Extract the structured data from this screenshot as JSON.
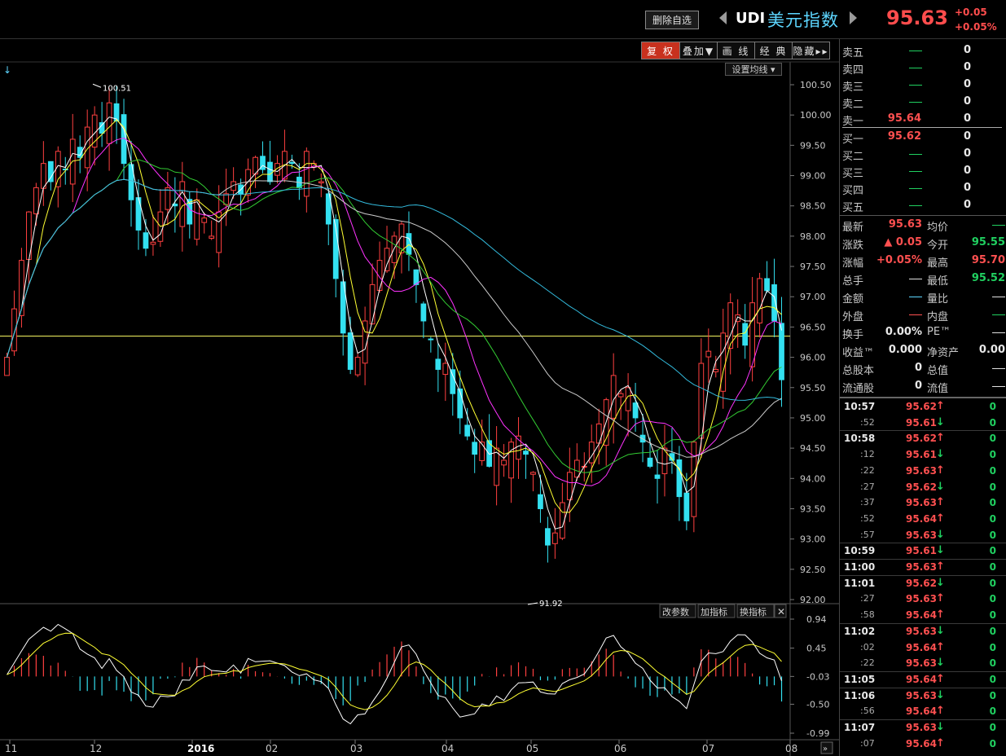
{
  "header": {
    "fav_button": "删除自选",
    "symbol_code": "UDI",
    "symbol_name": "美元指数",
    "last_price": "95.63",
    "change": "+0.05",
    "change_pct": "+0.05%"
  },
  "toolbar": {
    "items": [
      {
        "label": "复 权",
        "active": true
      },
      {
        "label": "叠加▼",
        "active": false
      },
      {
        "label": "画 线",
        "active": false
      },
      {
        "label": "经 典",
        "active": false
      },
      {
        "label": "隐藏▸▸",
        "active": false
      }
    ]
  },
  "ma_settings_label": "设置均线 ▾",
  "indicator_buttons": [
    "改参数",
    "加指标",
    "换指标"
  ],
  "chart_data": [
    {
      "type": "candlestick",
      "yaxis_ticks": [
        "100.50",
        "100.00",
        "99.50",
        "99.00",
        "98.50",
        "98.00",
        "97.50",
        "97.00",
        "96.50",
        "96.00",
        "95.50",
        "95.00",
        "94.50",
        "94.00",
        "93.50",
        "93.00",
        "92.50",
        "92.00"
      ],
      "ylim": [
        92.0,
        100.5
      ],
      "xaxis_ticks": [
        "11",
        "12",
        "2016",
        "02",
        "03",
        "04",
        "05",
        "06",
        "07",
        "08"
      ],
      "high_marker": "100.51",
      "low_marker": "91.92",
      "reference_line": 96.35,
      "closes": [
        96.0,
        96.8,
        97.6,
        98.4,
        98.8,
        99.2,
        98.9,
        99.4,
        99.1,
        99.6,
        99.3,
        99.8,
        100.0,
        99.7,
        100.2,
        99.9,
        99.2,
        98.6,
        98.1,
        97.8,
        97.9,
        98.4,
        98.8,
        98.5,
        98.9,
        98.2,
        98.6,
        98.3,
        98.0,
        98.4,
        98.7,
        98.9,
        98.7,
        99.1,
        99.3,
        99.1,
        98.9,
        99.2,
        99.4,
        99.2,
        98.8,
        99.4,
        99.2,
        98.9,
        98.2,
        97.3,
        96.4,
        95.8,
        96.0,
        96.6,
        97.2,
        97.6,
        97.8,
        98.0,
        98.2,
        97.7,
        97.2,
        96.6,
        96.3,
        95.8,
        95.9,
        95.4,
        95.0,
        94.7,
        94.4,
        94.6,
        94.2,
        94.5,
        94.3,
        94.6,
        94.7,
        94.4,
        94.1,
        93.5,
        92.9,
        93.1,
        93.6,
        94.1,
        94.3,
        94.2,
        94.6,
        94.9,
        95.3,
        95.7,
        95.4,
        95.5,
        95.0,
        94.6,
        94.2,
        94.0,
        94.5,
        94.3,
        93.7,
        93.3,
        94.6,
        95.9,
        96.1,
        95.8,
        96.4,
        96.9,
        96.7,
        96.2,
        96.9,
        97.3,
        97.1,
        96.6,
        95.63
      ],
      "series": [
        {
          "name": "MA5",
          "color": "#ffffff"
        },
        {
          "name": "MA10",
          "color": "#ffff33"
        },
        {
          "name": "MA20",
          "color": "#ff33ff"
        },
        {
          "name": "MA30",
          "color": "#33cc33"
        },
        {
          "name": "MA60",
          "color": "#cccccc"
        },
        {
          "name": "MA120",
          "color": "#33bbdd"
        }
      ]
    },
    {
      "type": "bar",
      "yaxis_ticks": [
        "0.94",
        "0.45",
        "-0.03",
        "-0.50",
        "-0.99"
      ],
      "ylim": [
        -0.99,
        0.94
      ]
    }
  ],
  "orderbook": {
    "asks": [
      {
        "label": "卖五",
        "price": "",
        "vol": "0"
      },
      {
        "label": "卖四",
        "price": "",
        "vol": "0"
      },
      {
        "label": "卖三",
        "price": "",
        "vol": "0"
      },
      {
        "label": "卖二",
        "price": "",
        "vol": "0"
      },
      {
        "label": "卖一",
        "price": "95.64",
        "vol": "0"
      }
    ],
    "bids": [
      {
        "label": "买一",
        "price": "95.62",
        "vol": "0"
      },
      {
        "label": "买二",
        "price": "",
        "vol": "0"
      },
      {
        "label": "买三",
        "price": "",
        "vol": "0"
      },
      {
        "label": "买四",
        "price": "",
        "vol": "0"
      },
      {
        "label": "买五",
        "price": "",
        "vol": "0"
      }
    ]
  },
  "quote": [
    {
      "l1": "最新",
      "v1": "95.63",
      "c1": "#ff5050",
      "l2": "均价",
      "v2": "",
      "c2": "#20d060"
    },
    {
      "l1": "涨跌",
      "v1": "▲ 0.05",
      "c1": "#ff5050",
      "l2": "今开",
      "v2": "95.55",
      "c2": "#20d060"
    },
    {
      "l1": "涨幅",
      "v1": "+0.05%",
      "c1": "#ff5050",
      "l2": "最高",
      "v2": "95.70",
      "c2": "#ff5050"
    },
    {
      "l1": "总手",
      "v1": "",
      "c1": "#e0e0e0",
      "l2": "最低",
      "v2": "95.52",
      "c2": "#20d060"
    },
    {
      "l1": "金额",
      "v1": "",
      "c1": "#5dd6ff",
      "l2": "量比",
      "v2": "",
      "c2": "#e0e0e0"
    },
    {
      "l1": "外盘",
      "v1": "",
      "c1": "#ff5050",
      "l2": "内盘",
      "v2": "",
      "c2": "#20d060"
    },
    {
      "l1": "换手",
      "v1": "0.00%",
      "c1": "#e8e8e8",
      "l2": "PE™",
      "v2": "",
      "c2": "#e0e0e0"
    },
    {
      "l1": "收益™",
      "v1": "0.000",
      "c1": "#e8e8e8",
      "l2": "净资产",
      "v2": "0.00",
      "c2": "#e8e8e8"
    },
    {
      "l1": "总股本",
      "v1": "0",
      "c1": "#e8e8e8",
      "l2": "总值",
      "v2": "",
      "c2": "#e0e0e0"
    },
    {
      "l1": "流通股",
      "v1": "0",
      "c1": "#e8e8e8",
      "l2": "流值",
      "v2": "",
      "c2": "#e0e0e0"
    }
  ],
  "ticks": [
    {
      "time": "10:57",
      "sub": false,
      "price": "95.62",
      "dir": "up",
      "vol": "0"
    },
    {
      "time": ":52",
      "sub": true,
      "price": "95.61",
      "dir": "down",
      "vol": "0"
    },
    {
      "time": "10:58",
      "sub": false,
      "price": "95.62",
      "dir": "up",
      "vol": "0"
    },
    {
      "time": ":12",
      "sub": true,
      "price": "95.61",
      "dir": "down",
      "vol": "0"
    },
    {
      "time": ":22",
      "sub": true,
      "price": "95.63",
      "dir": "up",
      "vol": "0"
    },
    {
      "time": ":27",
      "sub": true,
      "price": "95.62",
      "dir": "down",
      "vol": "0"
    },
    {
      "time": ":37",
      "sub": true,
      "price": "95.63",
      "dir": "up",
      "vol": "0"
    },
    {
      "time": ":52",
      "sub": true,
      "price": "95.64",
      "dir": "up",
      "vol": "0"
    },
    {
      "time": ":57",
      "sub": true,
      "price": "95.63",
      "dir": "down",
      "vol": "0"
    },
    {
      "time": "10:59",
      "sub": false,
      "price": "95.61",
      "dir": "down",
      "vol": "0"
    },
    {
      "time": "11:00",
      "sub": false,
      "price": "95.63",
      "dir": "up",
      "vol": "0"
    },
    {
      "time": "11:01",
      "sub": false,
      "price": "95.62",
      "dir": "down",
      "vol": "0"
    },
    {
      "time": ":27",
      "sub": true,
      "price": "95.63",
      "dir": "up",
      "vol": "0"
    },
    {
      "time": ":58",
      "sub": true,
      "price": "95.64",
      "dir": "up",
      "vol": "0"
    },
    {
      "time": "11:02",
      "sub": false,
      "price": "95.63",
      "dir": "down",
      "vol": "0"
    },
    {
      "time": ":02",
      "sub": true,
      "price": "95.64",
      "dir": "up",
      "vol": "0"
    },
    {
      "time": ":22",
      "sub": true,
      "price": "95.63",
      "dir": "down",
      "vol": "0"
    },
    {
      "time": "11:05",
      "sub": false,
      "price": "95.64",
      "dir": "up",
      "vol": "0"
    },
    {
      "time": "11:06",
      "sub": false,
      "price": "95.63",
      "dir": "down",
      "vol": "0"
    },
    {
      "time": ":56",
      "sub": true,
      "price": "95.64",
      "dir": "up",
      "vol": "0"
    },
    {
      "time": "11:07",
      "sub": false,
      "price": "95.63",
      "dir": "down",
      "vol": "0"
    },
    {
      "time": ":07",
      "sub": true,
      "price": "95.64",
      "dir": "up",
      "vol": "0"
    }
  ]
}
